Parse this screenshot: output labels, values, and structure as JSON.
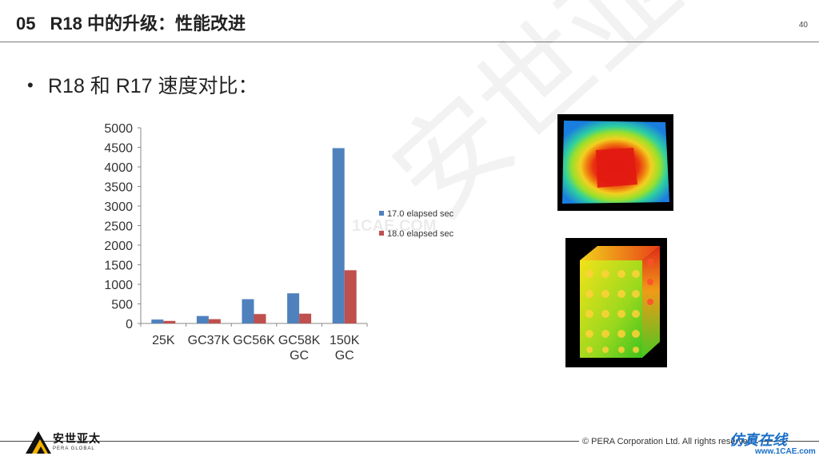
{
  "header": {
    "section_number": "05",
    "title": "R18 中的升级：性能改进",
    "page_number": "40"
  },
  "bullet": {
    "symbol": "•",
    "text": "R18 和 R17 速度对比："
  },
  "chart_data": {
    "type": "bar",
    "categories": [
      "25K GC",
      "37K GC",
      "56K GC",
      "58K GC",
      "150K GC"
    ],
    "category_label_lines": [
      [
        "25K"
      ],
      [
        "GC37K"
      ],
      [
        "GC56K"
      ],
      [
        "GC58K",
        "GC"
      ],
      [
        "150K",
        "GC"
      ]
    ],
    "series": [
      {
        "name": "17.0 elapsed sec",
        "values": [
          100,
          190,
          620,
          770,
          4480
        ],
        "color": "#4f81bd"
      },
      {
        "name": "18.0 elapsed sec",
        "values": [
          65,
          110,
          240,
          250,
          1360
        ],
        "color": "#c0504d"
      }
    ],
    "ylim": [
      0,
      5000
    ],
    "yticks": [
      0,
      500,
      1000,
      1500,
      2000,
      2500,
      3000,
      3500,
      4000,
      4500,
      5000
    ],
    "grid": false,
    "legend_position": "right"
  },
  "images": {
    "heatmap_alt": "plate heat contour",
    "cube_alt": "cube model contour"
  },
  "watermark": {
    "big": "安世亚太",
    "small": "1CAE.COM"
  },
  "footer": {
    "logo_text": "安世亚太",
    "logo_sub": "PERA GLOBAL",
    "copyright": "©  PERA Corporation Ltd. All rights reserved.",
    "site_name": "仿真在线",
    "site_url": "www.1CAE.com"
  },
  "colors": {
    "series1": "#4f81bd",
    "series2": "#c0504d",
    "site_blue": "#1a6fc6",
    "logo_yellow": "#f2b300"
  }
}
